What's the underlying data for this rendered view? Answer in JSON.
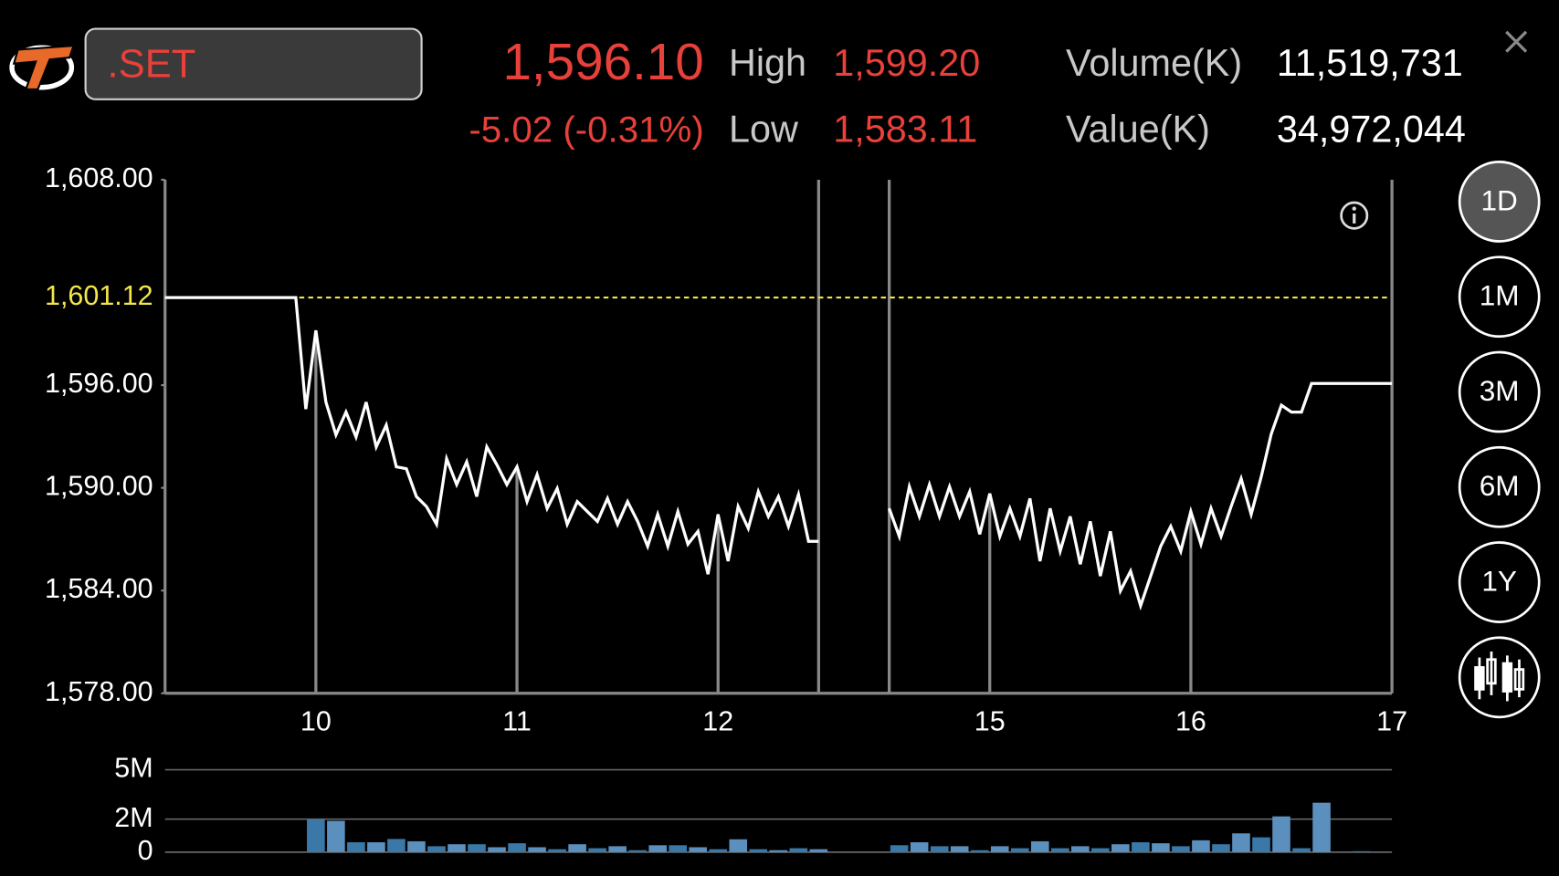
{
  "header": {
    "symbol": ".SET",
    "last": "1,596.10",
    "change": "-5.02 (-0.31%)",
    "high_label": "High",
    "high": "1,599.20",
    "low_label": "Low",
    "low": "1,583.11",
    "volume_label": "Volume(K)",
    "volume": "11,519,731",
    "value_label": "Value(K)",
    "value": "34,972,044"
  },
  "periods": [
    "1D",
    "1M",
    "3M",
    "6M",
    "1Y"
  ],
  "selected_period": 0,
  "chart_data": [
    {
      "type": "line",
      "color": "#ffffff",
      "x": [
        9.25,
        9.9,
        9.95,
        10.0,
        10.05,
        10.1,
        10.15,
        10.2,
        10.25,
        10.3,
        10.35,
        10.4,
        10.45,
        10.5,
        10.55,
        10.6,
        10.65,
        10.7,
        10.75,
        10.8,
        10.85,
        10.9,
        10.95,
        11.0,
        11.05,
        11.1,
        11.15,
        11.2,
        11.25,
        11.3,
        11.35,
        11.4,
        11.45,
        11.5,
        11.55,
        11.6,
        11.65,
        11.7,
        11.75,
        11.8,
        11.85,
        11.9,
        11.95,
        12.0,
        12.05,
        12.1,
        12.15,
        12.2,
        12.25,
        12.3,
        12.35,
        12.4,
        12.45,
        12.5,
        13.5,
        14.5,
        14.55,
        14.6,
        14.65,
        14.7,
        14.75,
        14.8,
        14.85,
        14.9,
        14.95,
        15.0,
        15.05,
        15.1,
        15.15,
        15.2,
        15.25,
        15.3,
        15.35,
        15.4,
        15.45,
        15.5,
        15.55,
        15.6,
        15.65,
        15.7,
        15.75,
        15.8,
        15.85,
        15.9,
        15.95,
        16.0,
        16.05,
        16.1,
        16.15,
        16.2,
        16.25,
        16.3,
        16.35,
        16.4,
        16.45,
        16.5,
        16.55,
        16.6,
        17.0
      ],
      "values": [
        1601.12,
        1601.12,
        1594.6,
        1599.2,
        1595.01,
        1593.09,
        1594.43,
        1592.97,
        1595.01,
        1592.39,
        1593.67,
        1591.23,
        1591.12,
        1589.49,
        1588.91,
        1587.87,
        1591.7,
        1590.19,
        1591.52,
        1589.49,
        1592.39,
        1591.35,
        1590.19,
        1591.23,
        1589.2,
        1590.77,
        1588.8,
        1589.96,
        1587.87,
        1589.2,
        1588.62,
        1588.04,
        1589.38,
        1587.87,
        1589.2,
        1588.04,
        1586.59,
        1588.45,
        1586.59,
        1588.62,
        1586.71,
        1587.46,
        1584.96,
        1588.45,
        1585.72,
        1588.91,
        1587.63,
        1589.78,
        1588.33,
        1589.49,
        1587.75,
        1589.61,
        1586.88,
        1586.88,
        null,
        1588.8,
        1587.17,
        1590.07,
        1588.33,
        1590.19,
        1588.33,
        1590.07,
        1588.33,
        1589.78,
        1587.29,
        1589.67,
        1587.17,
        1588.8,
        1587.17,
        1589.38,
        1585.72,
        1588.8,
        1586.3,
        1588.33,
        1585.54,
        1588.04,
        1584.85,
        1587.46,
        1583.98,
        1585.14,
        1583.11,
        1584.85,
        1586.59,
        1587.75,
        1586.3,
        1588.62,
        1586.71,
        1588.8,
        1587.17,
        1588.91,
        1590.54,
        1588.45,
        1590.65,
        1593.15,
        1594.83,
        1594.43,
        1594.43,
        1596.1,
        1596.1
      ],
      "xlim": [
        9.25,
        17
      ],
      "xbreak": [
        12.5,
        14.5
      ],
      "xticks": [
        10,
        11,
        12,
        15,
        16,
        17
      ],
      "ylim": [
        1578,
        1608
      ],
      "yticks": [
        {
          "value": 1578,
          "label": "1,578.00"
        },
        {
          "value": 1584,
          "label": "1,584.00"
        },
        {
          "value": 1590,
          "label": "1,590.00"
        },
        {
          "value": 1596,
          "label": "1,596.00"
        },
        {
          "value": 1608,
          "label": "1,608.00"
        }
      ],
      "reference_line": {
        "value": 1601.12,
        "label": "1,601.12",
        "color": "#f2e64a"
      }
    },
    {
      "type": "bar",
      "color": "#3a78a8",
      "x": [
        10.0,
        10.1,
        10.2,
        10.3,
        10.4,
        10.5,
        10.6,
        10.7,
        10.8,
        10.9,
        11.0,
        11.1,
        11.2,
        11.3,
        11.4,
        11.5,
        11.6,
        11.7,
        11.8,
        11.9,
        12.0,
        12.1,
        12.2,
        12.3,
        12.4,
        12.5,
        14.55,
        14.65,
        14.75,
        14.85,
        14.95,
        15.05,
        15.15,
        15.25,
        15.35,
        15.45,
        15.55,
        15.65,
        15.75,
        15.85,
        15.95,
        16.05,
        16.15,
        16.25,
        16.35,
        16.45,
        16.55,
        16.65,
        16.85
      ],
      "values": [
        2.0,
        1.9,
        0.6,
        0.6,
        0.8,
        0.66,
        0.36,
        0.48,
        0.48,
        0.3,
        0.54,
        0.3,
        0.18,
        0.48,
        0.24,
        0.36,
        0.12,
        0.42,
        0.42,
        0.3,
        0.18,
        0.78,
        0.18,
        0.12,
        0.24,
        0.18,
        0.42,
        0.6,
        0.36,
        0.36,
        0.12,
        0.36,
        0.24,
        0.66,
        0.24,
        0.36,
        0.24,
        0.48,
        0.6,
        0.54,
        0.36,
        0.72,
        0.48,
        1.14,
        0.9,
        2.17,
        0.24,
        3.0,
        0.06
      ],
      "xlim": [
        9.25,
        17
      ],
      "xbreak": [
        12.5,
        14.5
      ],
      "ylim": [
        0,
        5
      ],
      "yticks": [
        0,
        {
          "value": 2,
          "label": "2M"
        },
        {
          "value": 5,
          "label": "5M"
        }
      ]
    }
  ]
}
